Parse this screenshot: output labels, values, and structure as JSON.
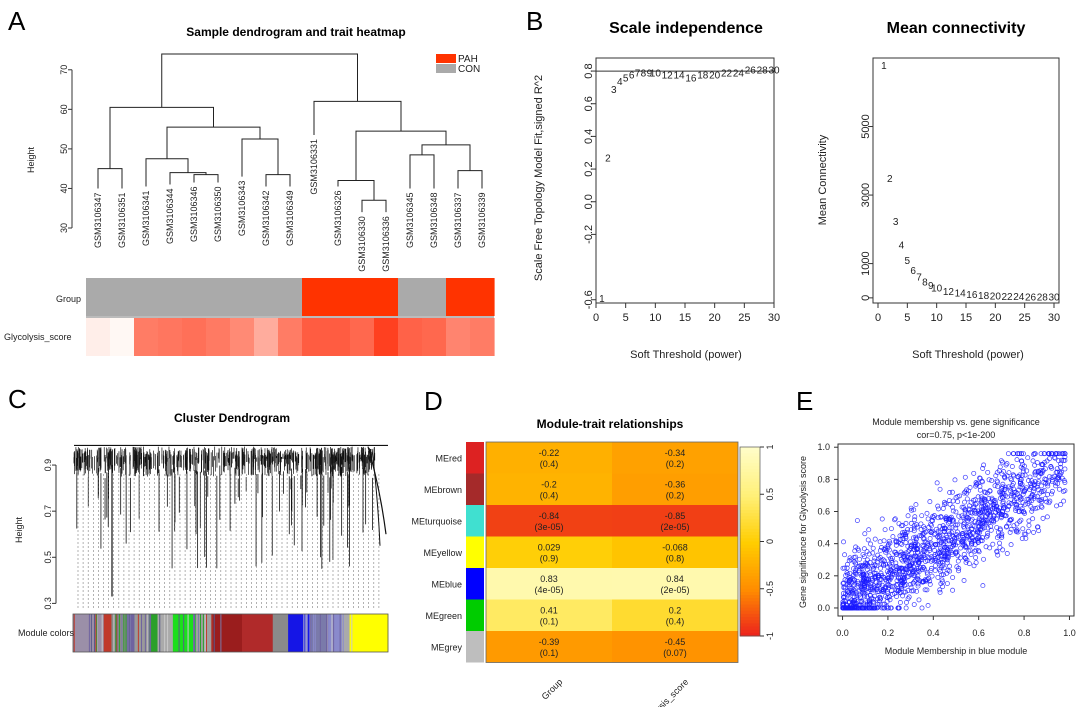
{
  "figure": {
    "colors": {
      "pah": "#ff3300",
      "con": "#aaaaaa",
      "label_red": "#cc1100",
      "blue": "#1a1aff"
    }
  },
  "panelA": {
    "letter": "A",
    "title": "Sample dendrogram and trait heatmap",
    "legend": [
      {
        "label": "PAH",
        "color": "#ff3300"
      },
      {
        "label": "CON",
        "color": "#aaaaaa"
      }
    ],
    "ylabel": "Height",
    "yticks": [
      30,
      40,
      50,
      60,
      70
    ],
    "samples": [
      "GSM3106347",
      "GSM3106351",
      "GSM3106341",
      "GSM3106344",
      "GSM3106346",
      "GSM3106350",
      "GSM3106343",
      "GSM3106342",
      "GSM3106349",
      "GSM3106331",
      "GSM3106326",
      "GSM3106330",
      "GSM3106336",
      "GSM3106345",
      "GSM3106348",
      "GSM3106337",
      "GSM3106339"
    ],
    "leaf_heights": [
      40.0,
      40.0,
      40.5,
      41.0,
      41.5,
      41.5,
      43.0,
      40.5,
      40.5,
      53.5,
      40.5,
      34.0,
      34.0,
      40.0,
      40.0,
      40.0,
      40.0
    ],
    "merges": [
      {
        "a": -1,
        "b": -2,
        "h": 45
      },
      {
        "a": -5,
        "b": -6,
        "h": 43.5
      },
      {
        "a": -4,
        "b": 1,
        "h": 44
      },
      {
        "a": -3,
        "b": 2,
        "h": 47.5
      },
      {
        "a": -8,
        "b": -9,
        "h": 43.5
      },
      {
        "a": -7,
        "b": 4,
        "h": 52.5
      },
      {
        "a": 3,
        "b": 5,
        "h": 55.5
      },
      {
        "a": 0,
        "b": 6,
        "h": 60.5
      },
      {
        "a": -12,
        "b": -13,
        "h": 37
      },
      {
        "a": -11,
        "b": 8,
        "h": 42
      },
      {
        "a": -14,
        "b": -15,
        "h": 48.5
      },
      {
        "a": -16,
        "b": -17,
        "h": 44.5
      },
      {
        "a": 10,
        "b": 11,
        "h": 51
      },
      {
        "a": 9,
        "b": 12,
        "h": 54.5
      },
      {
        "a": -10,
        "b": 13,
        "h": 62
      },
      {
        "a": 7,
        "b": 14,
        "h": 74
      }
    ],
    "row_labels": [
      "Group",
      "Glycolysis_score"
    ],
    "group": [
      "CON",
      "CON",
      "CON",
      "CON",
      "CON",
      "CON",
      "CON",
      "CON",
      "CON",
      "PAH",
      "PAH",
      "PAH",
      "PAH",
      "CON",
      "CON",
      "PAH",
      "PAH"
    ],
    "glycolysis_score": [
      0.05,
      0.0,
      0.62,
      0.65,
      0.68,
      0.63,
      0.55,
      0.38,
      0.62,
      0.78,
      0.78,
      0.72,
      0.92,
      0.75,
      0.72,
      0.58,
      0.62
    ]
  },
  "panelB": {
    "letter": "B",
    "scale": {
      "title": "Scale independence",
      "xlabel": "Soft Threshold (power)",
      "ylabel": "Scale Free Topology Model Fit,signed R^2",
      "xlim": [
        0,
        30
      ],
      "ylim": [
        -0.62,
        0.88
      ],
      "xticks": [
        0,
        5,
        10,
        15,
        20,
        25,
        30
      ],
      "yticks": [
        -0.6,
        -0.2,
        0.0,
        0.2,
        0.4,
        0.6,
        0.8
      ],
      "ytick_labels": [
        "-0.6",
        "-0.2",
        "0.0",
        "0.2",
        "0.4",
        "0.6",
        "0.8"
      ],
      "hline": 0.8,
      "powers": [
        1,
        2,
        3,
        4,
        5,
        6,
        7,
        8,
        9,
        10,
        12,
        14,
        16,
        18,
        20,
        22,
        24,
        26,
        28,
        30
      ],
      "values": [
        -0.59,
        0.27,
        0.69,
        0.74,
        0.76,
        0.78,
        0.79,
        0.79,
        0.79,
        0.79,
        0.78,
        0.78,
        0.76,
        0.78,
        0.78,
        0.79,
        0.79,
        0.81,
        0.81,
        0.81
      ]
    },
    "mean": {
      "title": "Mean connectivity",
      "xlabel": "Soft Threshold (power)",
      "ylabel": "Mean Connectivity",
      "xlim": [
        0,
        30
      ],
      "ylim": [
        -150,
        7000
      ],
      "xticks": [
        0,
        5,
        10,
        15,
        20,
        25,
        30
      ],
      "yticks": [
        0,
        1000,
        3000,
        5000
      ],
      "powers": [
        1,
        2,
        3,
        4,
        5,
        6,
        7,
        8,
        9,
        10,
        12,
        14,
        16,
        18,
        20,
        22,
        24,
        26,
        28,
        30
      ],
      "values": [
        6800,
        3500,
        2250,
        1550,
        1100,
        820,
        620,
        480,
        380,
        300,
        200,
        150,
        110,
        90,
        75,
        60,
        50,
        45,
        40,
        35
      ]
    }
  },
  "panelC": {
    "letter": "C",
    "title": "Cluster Dendrogram",
    "ylabel": "Height",
    "yticks": [
      0.3,
      0.5,
      0.7,
      0.9
    ],
    "ylim": [
      0.28,
      1.0
    ],
    "colorbar_label": "Module colors",
    "modules": [
      {
        "color": "#9b8fa8",
        "w": 4
      },
      {
        "color": "#c0392b",
        "w": 1
      },
      {
        "color": "#8a8a8a",
        "w": 2
      },
      {
        "color": "#6f63a0",
        "w": 1
      },
      {
        "color": "#9a9a9a",
        "w": 2
      },
      {
        "color": "#2aa02a",
        "w": 1
      },
      {
        "color": "#aaaaaa",
        "w": 2
      },
      {
        "color": "#1bdf1b",
        "w": 3
      },
      {
        "color": "#a0a0a0",
        "w": 2
      },
      {
        "color": "#9a1d1d",
        "w": 4
      },
      {
        "color": "#b02a2a",
        "w": 4
      },
      {
        "color": "#8a8a8a",
        "w": 2
      },
      {
        "color": "#1515e6",
        "w": 3
      },
      {
        "color": "#7a7aaa",
        "w": 2
      },
      {
        "color": "#8a8acc",
        "w": 2
      },
      {
        "color": "#aaaaaa",
        "w": 1
      },
      {
        "color": "#ffff00",
        "w": 5
      }
    ]
  },
  "panelD": {
    "letter": "D",
    "title": "Module-trait relationships",
    "columns": [
      "Group",
      "Glycolysis_score"
    ],
    "rows": [
      {
        "module": "MEred",
        "color": "#dd2222",
        "r": [
          -0.22,
          -0.34
        ],
        "text": [
          "-0.22",
          "-0.34"
        ],
        "p": [
          "(0.4)",
          "(0.2)"
        ]
      },
      {
        "module": "MEbrown",
        "color": "#a52a2a",
        "r": [
          -0.2,
          -0.36
        ],
        "text": [
          "-0.2",
          "-0.36"
        ],
        "p": [
          "(0.4)",
          "(0.2)"
        ]
      },
      {
        "module": "MEturquoise",
        "color": "#40e0d0",
        "r": [
          -0.84,
          -0.85
        ],
        "text": [
          "-0.84",
          "-0.85"
        ],
        "p": [
          "(3e-05)",
          "(2e-05)"
        ]
      },
      {
        "module": "MEyellow",
        "color": "#ffff00",
        "r": [
          0.029,
          -0.068
        ],
        "text": [
          "0.029",
          "-0.068"
        ],
        "p": [
          "(0.9)",
          "(0.8)"
        ]
      },
      {
        "module": "MEblue",
        "color": "#0000ff",
        "r": [
          0.83,
          0.84
        ],
        "text": [
          "0.83",
          "0.84"
        ],
        "p": [
          "(4e-05)",
          "(2e-05)"
        ]
      },
      {
        "module": "MEgreen",
        "color": "#00cc00",
        "r": [
          0.41,
          0.2
        ],
        "text": [
          "0.41",
          "0.2"
        ],
        "p": [
          "(0.1)",
          "(0.4)"
        ]
      },
      {
        "module": "MEgrey",
        "color": "#bebebe",
        "r": [
          -0.39,
          -0.45
        ],
        "text": [
          "-0.39",
          "-0.45"
        ],
        "p": [
          "(0.1)",
          "(0.07)"
        ]
      }
    ],
    "legend_ticks": [
      1,
      0.5,
      0,
      -0.5,
      -1
    ]
  },
  "panelE": {
    "letter": "E",
    "title": "Module membership vs. gene significance",
    "subtitle": "cor=0.75, p<1e-200",
    "xlabel": "Module Membership in blue module",
    "ylabel": "Gene significance for Glycolysis score",
    "xlim": [
      -0.02,
      1.02
    ],
    "ylim": [
      -0.05,
      1.02
    ],
    "xticks": [
      0.0,
      0.2,
      0.4,
      0.6,
      0.8,
      1.0
    ],
    "yticks": [
      0.0,
      0.2,
      0.4,
      0.6,
      0.8,
      1.0
    ],
    "xtick_labels": [
      "0.0",
      "0.2",
      "0.4",
      "0.6",
      "0.8",
      "1.0"
    ],
    "ytick_labels": [
      "0.0",
      "0.2",
      "0.4",
      "0.6",
      "0.8",
      "1.0"
    ],
    "cor": 0.75,
    "n_points": 1500
  },
  "chart_data": [
    {
      "type": "heatmap",
      "title": "Sample dendrogram and trait heatmap",
      "categories": [
        "GSM3106347",
        "GSM3106351",
        "GSM3106341",
        "GSM3106344",
        "GSM3106346",
        "GSM3106350",
        "GSM3106343",
        "GSM3106342",
        "GSM3106349",
        "GSM3106331",
        "GSM3106326",
        "GSM3106330",
        "GSM3106336",
        "GSM3106345",
        "GSM3106348",
        "GSM3106337",
        "GSM3106339"
      ],
      "ylabel": "Height",
      "ylim": [
        30,
        75
      ],
      "series": [
        {
          "name": "Group",
          "values": [
            "CON",
            "CON",
            "CON",
            "CON",
            "CON",
            "CON",
            "CON",
            "CON",
            "CON",
            "PAH",
            "PAH",
            "PAH",
            "PAH",
            "CON",
            "CON",
            "PAH",
            "PAH"
          ]
        },
        {
          "name": "Glycolysis_score",
          "values": [
            0.05,
            0.0,
            0.62,
            0.65,
            0.68,
            0.63,
            0.55,
            0.38,
            0.62,
            0.78,
            0.78,
            0.72,
            0.92,
            0.75,
            0.72,
            0.58,
            0.62
          ]
        }
      ]
    },
    {
      "type": "scatter",
      "title": "Scale independence",
      "xlabel": "Soft Threshold (power)",
      "ylabel": "Scale Free Topology Model Fit,signed R^2",
      "x": [
        1,
        2,
        3,
        4,
        5,
        6,
        7,
        8,
        9,
        10,
        12,
        14,
        16,
        18,
        20,
        22,
        24,
        26,
        28,
        30
      ],
      "y": [
        -0.59,
        0.27,
        0.69,
        0.74,
        0.76,
        0.78,
        0.79,
        0.79,
        0.79,
        0.79,
        0.78,
        0.78,
        0.76,
        0.78,
        0.78,
        0.79,
        0.79,
        0.81,
        0.81,
        0.81
      ],
      "xlim": [
        0,
        30
      ],
      "ylim": [
        -0.6,
        0.85
      ]
    },
    {
      "type": "scatter",
      "title": "Mean connectivity",
      "xlabel": "Soft Threshold (power)",
      "ylabel": "Mean Connectivity",
      "x": [
        1,
        2,
        3,
        4,
        5,
        6,
        7,
        8,
        9,
        10,
        12,
        14,
        16,
        18,
        20,
        22,
        24,
        26,
        28,
        30
      ],
      "y": [
        6800,
        3500,
        2250,
        1550,
        1100,
        820,
        620,
        480,
        380,
        300,
        200,
        150,
        110,
        90,
        75,
        60,
        50,
        45,
        40,
        35
      ],
      "xlim": [
        0,
        30
      ],
      "ylim": [
        0,
        7000
      ]
    },
    {
      "type": "heatmap",
      "title": "Module-trait relationships",
      "categories": [
        "Group",
        "Glycolysis_score"
      ],
      "series": [
        {
          "name": "MEred",
          "values": [
            -0.22,
            -0.34
          ],
          "p": [
            "0.4",
            "0.2"
          ]
        },
        {
          "name": "MEbrown",
          "values": [
            -0.2,
            -0.36
          ],
          "p": [
            "0.4",
            "0.2"
          ]
        },
        {
          "name": "MEturquoise",
          "values": [
            -0.84,
            -0.85
          ],
          "p": [
            "3e-05",
            "2e-05"
          ]
        },
        {
          "name": "MEyellow",
          "values": [
            0.029,
            -0.068
          ],
          "p": [
            "0.9",
            "0.8"
          ]
        },
        {
          "name": "MEblue",
          "values": [
            0.83,
            0.84
          ],
          "p": [
            "4e-05",
            "2e-05"
          ]
        },
        {
          "name": "MEgreen",
          "values": [
            0.41,
            0.2
          ],
          "p": [
            "0.1",
            "0.4"
          ]
        },
        {
          "name": "MEgrey",
          "values": [
            -0.39,
            -0.45
          ],
          "p": [
            "0.1",
            "0.07"
          ]
        }
      ],
      "legend_range": [
        -1,
        1
      ]
    },
    {
      "type": "scatter",
      "title": "Module membership vs. gene significance",
      "subtitle": "cor=0.75, p<1e-200",
      "xlabel": "Module Membership in blue module",
      "ylabel": "Gene significance for Glycolysis score",
      "xlim": [
        0,
        1
      ],
      "ylim": [
        0,
        1
      ],
      "cor": 0.75
    }
  ]
}
